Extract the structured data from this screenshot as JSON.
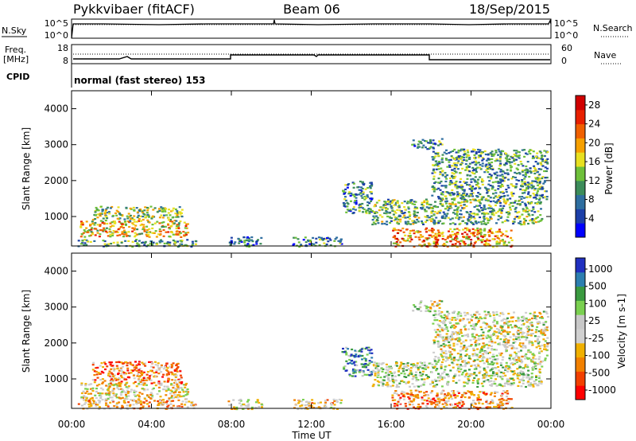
{
  "header": {
    "station": "Pykkvibaer (fitACF)",
    "beam": "Beam 06",
    "date": "18/Sep/2015"
  },
  "strip": {
    "nsky_label": "N.Sky",
    "nsky_ticks": [
      "10^5",
      "10^0"
    ],
    "nsearch_label": "N.Search",
    "nsearch_ticks": [
      "10^5",
      "10^0"
    ],
    "freq_label_1": "Freq.",
    "freq_label_2": "[MHz]",
    "freq_ticks": [
      "18",
      "8"
    ],
    "nave_label": "Nave",
    "nave_ticks": [
      "60",
      "0"
    ],
    "cpid_label": "CPID",
    "cpid_text": "normal (fast stereo) 153"
  },
  "colors": {
    "power_scale": [
      "#0000ff",
      "#1c3fa8",
      "#2e6ea0",
      "#3c8c5a",
      "#6ec03a",
      "#e8e020",
      "#f6a000",
      "#f06000",
      "#e82000",
      "#d00000"
    ],
    "velocity_scale": [
      "#ff0000",
      "#f24000",
      "#f28000",
      "#f0b000",
      "#d0d0d0",
      "#c8c8c8",
      "#7ad050",
      "#3a9a40",
      "#2d7fb0",
      "#2030c0"
    ],
    "curve": "#000000"
  },
  "chart_data": [
    {
      "type": "heatmap",
      "name": "power",
      "xlabel": "",
      "ylabel": "Slant Range [km]",
      "x_ticks": [
        "00:00",
        "04:00",
        "08:00",
        "12:00",
        "16:00",
        "20:00",
        "00:00"
      ],
      "y_ticks": [
        "1000",
        "2000",
        "3000",
        "4000"
      ],
      "xlim_hours": [
        0,
        24
      ],
      "ylim_km": [
        180,
        4500
      ],
      "colorbar": {
        "label": "Power [dB]",
        "ticks": [
          "4",
          "8",
          "12",
          "16",
          "20",
          "24",
          "28"
        ],
        "range": [
          0,
          30
        ]
      },
      "regions": [
        {
          "t0": 0.3,
          "t1": 6.2,
          "r0": 180,
          "r1": 380,
          "level": 0.35
        },
        {
          "t0": 0.4,
          "t1": 5.8,
          "r0": 450,
          "r1": 900,
          "level": 0.6
        },
        {
          "t0": 1.0,
          "t1": 5.5,
          "r0": 900,
          "r1": 1300,
          "level": 0.45
        },
        {
          "t0": 7.8,
          "t1": 9.5,
          "r0": 180,
          "r1": 450,
          "level": 0.25
        },
        {
          "t0": 11.0,
          "t1": 13.5,
          "r0": 180,
          "r1": 450,
          "level": 0.3
        },
        {
          "t0": 13.5,
          "t1": 15.0,
          "r0": 1100,
          "r1": 2000,
          "level": 0.3
        },
        {
          "t0": 16.0,
          "t1": 22.0,
          "r0": 180,
          "r1": 700,
          "level": 0.7
        },
        {
          "t0": 15.0,
          "t1": 23.5,
          "r0": 800,
          "r1": 1500,
          "level": 0.4
        },
        {
          "t0": 18.0,
          "t1": 23.8,
          "r0": 1500,
          "r1": 2900,
          "level": 0.35
        },
        {
          "t0": 17.0,
          "t1": 18.5,
          "r0": 2900,
          "r1": 3200,
          "level": 0.3
        }
      ]
    },
    {
      "type": "heatmap",
      "name": "velocity",
      "xlabel": "Time UT",
      "ylabel": "Slant Range [km]",
      "x_ticks": [
        "00:00",
        "04:00",
        "08:00",
        "12:00",
        "16:00",
        "20:00",
        "00:00"
      ],
      "y_ticks": [
        "1000",
        "2000",
        "3000",
        "4000"
      ],
      "xlim_hours": [
        0,
        24
      ],
      "ylim_km": [
        180,
        4500
      ],
      "colorbar": {
        "label": "Velocity [m s-1]",
        "ticks": [
          "1000",
          "500",
          "100",
          "25",
          "-25",
          "-100",
          "-500",
          "-1000"
        ],
        "range": [
          -1000,
          1000
        ]
      },
      "regions": [
        {
          "t0": 0.3,
          "t1": 6.2,
          "r0": 180,
          "r1": 450,
          "level": 0.35
        },
        {
          "t0": 0.4,
          "t1": 5.8,
          "r0": 450,
          "r1": 900,
          "level": 0.45
        },
        {
          "t0": 1.0,
          "t1": 5.5,
          "r0": 900,
          "r1": 1500,
          "level": 0.25
        },
        {
          "t0": 7.8,
          "t1": 9.5,
          "r0": 180,
          "r1": 450,
          "level": 0.45
        },
        {
          "t0": 11.0,
          "t1": 13.5,
          "r0": 180,
          "r1": 450,
          "level": 0.4
        },
        {
          "t0": 13.5,
          "t1": 15.0,
          "r0": 1100,
          "r1": 1900,
          "level": 0.8
        },
        {
          "t0": 16.0,
          "t1": 22.0,
          "r0": 180,
          "r1": 700,
          "level": 0.3
        },
        {
          "t0": 15.0,
          "t1": 23.5,
          "r0": 800,
          "r1": 1500,
          "level": 0.55
        },
        {
          "t0": 18.0,
          "t1": 23.8,
          "r0": 1500,
          "r1": 2900,
          "level": 0.5
        },
        {
          "t0": 17.0,
          "t1": 18.5,
          "r0": 2900,
          "r1": 3200,
          "level": 0.5
        }
      ]
    }
  ]
}
